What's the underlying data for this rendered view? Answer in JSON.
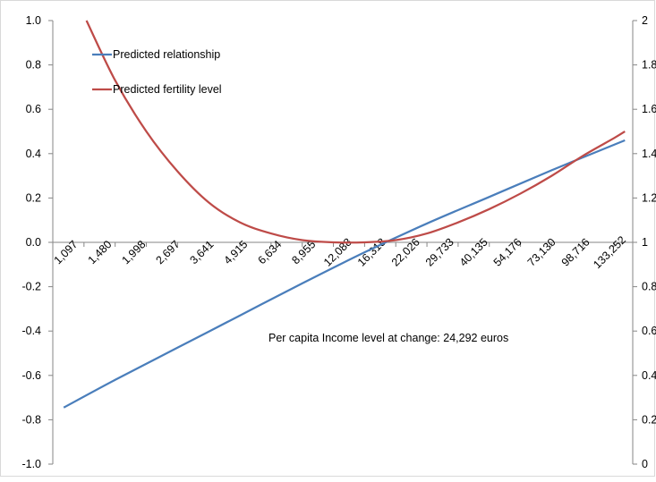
{
  "chart_data": {
    "type": "line",
    "title": "",
    "xlabel": "",
    "ylabel": "",
    "x_tick_labels": [
      "1,097",
      "1,480",
      "1,998",
      "2,697",
      "3,641",
      "4,915",
      "6,634",
      "8,955",
      "12,088",
      "16,318",
      "22,026",
      "29,733",
      "40,135",
      "54,176",
      "73,130",
      "98,716",
      "133,252"
    ],
    "y_left": {
      "lim": [
        -1.0,
        1.0
      ],
      "step": 0.2,
      "tick_labels": [
        "1.0",
        "0.8",
        "0.6",
        "0.4",
        "0.2",
        "0.0",
        "-0.2",
        "-0.4",
        "-0.6",
        "-0.8",
        "-1.0"
      ]
    },
    "y_right": {
      "lim": [
        0,
        2
      ],
      "step": 0.2,
      "tick_labels": [
        "2",
        "1.8",
        "1.6",
        "1.4",
        "1.2",
        "1",
        "0.8",
        "0.6",
        "0.4",
        "0.2",
        "0"
      ]
    },
    "x_index_range": [
      0,
      18.6
    ],
    "series": [
      {
        "name": "Predicted relationship",
        "color": "#4a7ebb",
        "axis": "left",
        "points": [
          [
            0.35,
            -0.745
          ],
          [
            2,
            -0.62
          ],
          [
            4,
            -0.475
          ],
          [
            6,
            -0.33
          ],
          [
            8,
            -0.185
          ],
          [
            10,
            -0.045
          ],
          [
            12,
            0.085
          ],
          [
            14,
            0.205
          ],
          [
            16,
            0.325
          ],
          [
            18,
            0.44
          ],
          [
            18.35,
            0.46
          ]
        ]
      },
      {
        "name": "Predicted fertility level",
        "color": "#be4b48",
        "axis": "right",
        "points": [
          [
            1.08,
            2.0
          ],
          [
            2,
            1.73
          ],
          [
            3,
            1.5
          ],
          [
            4,
            1.32
          ],
          [
            5,
            1.18
          ],
          [
            6,
            1.09
          ],
          [
            7,
            1.04
          ],
          [
            8,
            1.01
          ],
          [
            9,
            1.0
          ],
          [
            10,
            1.0
          ],
          [
            11,
            1.01
          ],
          [
            12,
            1.04
          ],
          [
            13,
            1.09
          ],
          [
            14,
            1.15
          ],
          [
            15,
            1.22
          ],
          [
            16,
            1.3
          ],
          [
            17,
            1.39
          ],
          [
            18,
            1.47
          ],
          [
            18.35,
            1.5
          ]
        ]
      }
    ],
    "legend_position": "top-left",
    "annotation": "Per capita Income level at change:  24,292  euros",
    "grid": false
  }
}
